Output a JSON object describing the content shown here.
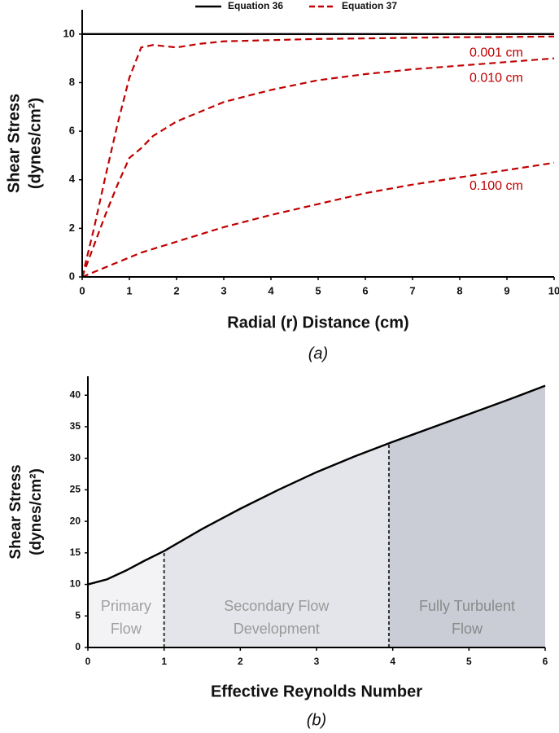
{
  "chart_data": [
    {
      "type": "line",
      "xlabel": "Radial (r) Distance (cm)",
      "ylabel": [
        "Shear Stress",
        "(dynes/cm²)"
      ],
      "caption": "(a)",
      "x": [
        0,
        0.25,
        0.5,
        0.75,
        1,
        1.25,
        1.5,
        2,
        2.5,
        3,
        4,
        5,
        6,
        7,
        8,
        9,
        10
      ],
      "xlim": [
        0,
        10
      ],
      "xticks": [
        0,
        1,
        2,
        3,
        4,
        5,
        6,
        7,
        8,
        9,
        10
      ],
      "ylim": [
        0,
        11
      ],
      "yticks": [
        0,
        2,
        4,
        6,
        8,
        10
      ],
      "series": [
        {
          "name": "Equation 36",
          "color": "#000000",
          "dashed": false,
          "values": [
            10,
            10,
            10,
            10,
            10,
            10,
            10,
            10,
            10,
            10,
            10,
            10,
            10,
            10,
            10,
            10,
            10
          ]
        },
        {
          "name": "Equation 37",
          "color": "#c00000",
          "dashed": true,
          "curves": [
            {
              "label": "0.001 cm",
              "values": [
                0,
                2.0,
                4.2,
                6.3,
                8.2,
                9.45,
                9.55,
                9.45,
                9.6,
                9.7,
                9.75,
                9.8,
                9.82,
                9.85,
                9.87,
                9.88,
                9.9
              ]
            },
            {
              "label": "0.010 cm",
              "values": [
                0,
                1.3,
                2.6,
                3.8,
                4.9,
                5.3,
                5.8,
                6.4,
                6.8,
                7.2,
                7.7,
                8.1,
                8.35,
                8.55,
                8.7,
                8.85,
                9.0
              ]
            },
            {
              "label": "0.100 cm",
              "values": [
                0,
                0.2,
                0.4,
                0.6,
                0.8,
                1.0,
                1.15,
                1.45,
                1.75,
                2.05,
                2.55,
                3.0,
                3.45,
                3.8,
                4.1,
                4.4,
                4.7
              ]
            }
          ]
        }
      ]
    },
    {
      "type": "line",
      "xlabel": "Effective Reynolds Number",
      "ylabel": [
        "Shear Stress",
        "(dynes/cm²)"
      ],
      "caption": "(b)",
      "x": [
        0,
        0.25,
        0.5,
        0.75,
        1,
        1.5,
        2,
        2.5,
        3,
        3.5,
        4,
        4.5,
        5,
        5.5,
        6
      ],
      "xlim": [
        0,
        6
      ],
      "xticks": [
        0,
        1,
        2,
        3,
        4,
        5,
        6
      ],
      "ylim": [
        0,
        43
      ],
      "yticks": [
        0,
        5,
        10,
        15,
        20,
        25,
        30,
        35,
        40
      ],
      "series": [
        {
          "color": "#000000",
          "dashed": false,
          "values": [
            10,
            10.8,
            12.2,
            13.8,
            15.3,
            18.8,
            22.0,
            25.0,
            27.8,
            30.3,
            32.6,
            34.8,
            37.0,
            39.2,
            41.5
          ]
        }
      ],
      "regions": [
        {
          "label": [
            "Primary",
            "Flow"
          ],
          "start": 0,
          "end": 1,
          "color": "#f3f3f5",
          "text_color": "#a0a0a0"
        },
        {
          "label": [
            "Secondary Flow",
            "Development"
          ],
          "start": 1,
          "end": 3.95,
          "color": "#e4e5ea",
          "text_color": "#9a9a9a"
        },
        {
          "label": [
            "Fully Turbulent",
            "Flow"
          ],
          "start": 3.95,
          "end": 6,
          "color": "#cacdd6",
          "text_color": "#8a8a8a"
        }
      ]
    }
  ]
}
